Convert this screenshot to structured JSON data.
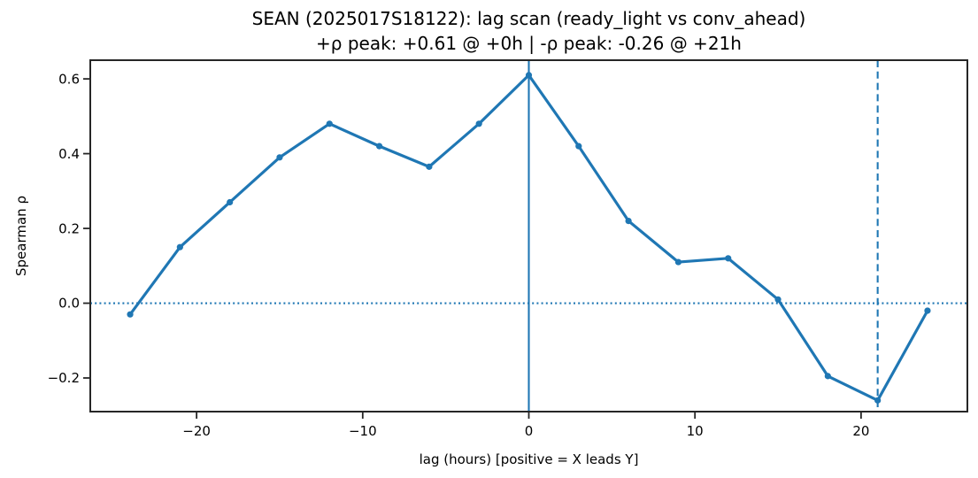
{
  "chart_data": {
    "type": "line",
    "title": "SEAN (2025017S18122): lag scan (ready_light vs conv_ahead)",
    "subtitle": "+ρ peak: +0.61 @ +0h | -ρ peak: -0.26 @ +21h",
    "xlabel": "lag (hours) [positive = X leads Y]",
    "ylabel": "Spearman ρ",
    "series": [
      {
        "name": "spearman-rho-vs-lag",
        "x": [
          -24,
          -21,
          -18,
          -15,
          -12,
          -9,
          -6,
          -3,
          0,
          3,
          6,
          9,
          12,
          15,
          18,
          21,
          24
        ],
        "y": [
          -0.03,
          0.15,
          0.27,
          0.39,
          0.48,
          0.42,
          0.365,
          0.48,
          0.61,
          0.42,
          0.22,
          0.11,
          0.12,
          0.01,
          -0.195,
          -0.26,
          -0.02
        ],
        "color": "#1f77b4",
        "marker": "circle",
        "line_width": 3.2
      }
    ],
    "xlim": [
      -26.4,
      26.4
    ],
    "ylim": [
      -0.29,
      0.65
    ],
    "xticks": {
      "values": [
        -20,
        -10,
        0,
        10,
        20
      ],
      "labels": [
        "−20",
        "−10",
        "0",
        "10",
        "20"
      ]
    },
    "yticks": {
      "values": [
        0.6,
        0.4,
        0.2,
        0.0,
        -0.2
      ],
      "labels": [
        "0.6",
        "0.4",
        "0.2",
        "0.0",
        "−0.2"
      ]
    },
    "grid": false,
    "legend": "none",
    "annotations": [
      {
        "kind": "hline",
        "y": 0,
        "style": "dotted",
        "color": "#1f77b4",
        "name": "zero-rho-line"
      },
      {
        "kind": "vline",
        "x": 0,
        "style": "solid",
        "color": "#1f77b4",
        "name": "pos-peak-lag-line"
      },
      {
        "kind": "vline",
        "x": 21,
        "style": "dashed",
        "color": "#1f77b4",
        "name": "neg-peak-lag-line"
      }
    ]
  },
  "style": {
    "accent": "#1f77b4",
    "text_color": "#000000",
    "spine_color": "#262626",
    "background": "#ffffff"
  }
}
